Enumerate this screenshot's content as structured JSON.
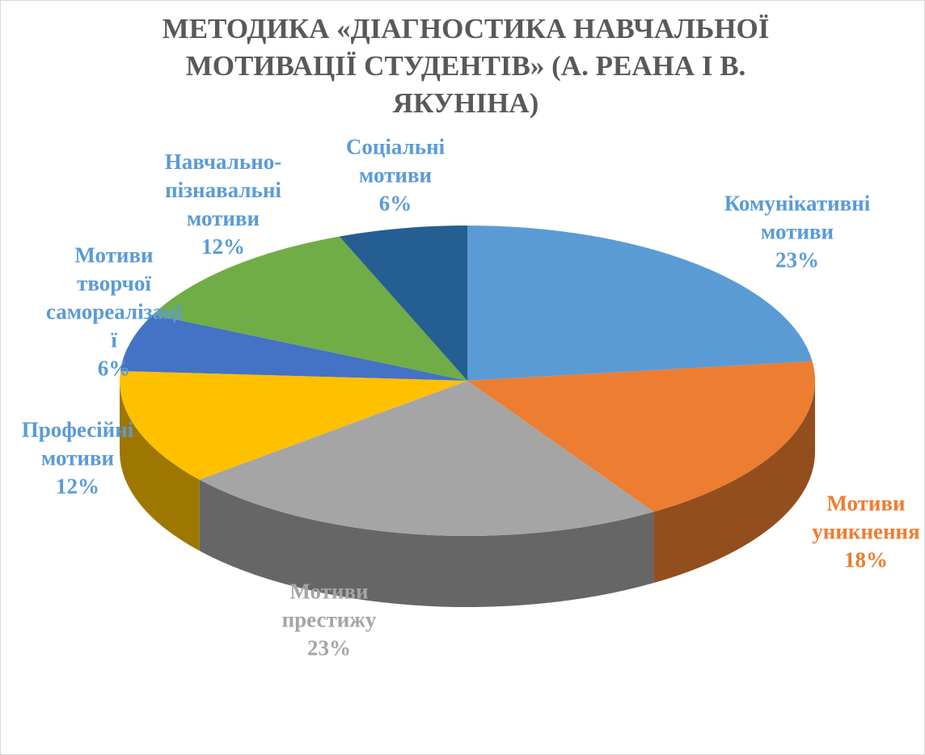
{
  "chart_data": {
    "type": "pie",
    "title": "МЕТОДИКА «ДІАГНОСТИКА НАВЧАЛЬНОЇ МОТИВАЦІЇ СТУДЕНТІВ» (А. РЕАНА І В. ЯКУНІНА)",
    "categories": [
      "Комунікативні мотиви",
      "Мотиви уникнення",
      "Мотиви престижу",
      "Професійні мотиви",
      "Мотиви творчої самореалізації",
      "Навчально-пізнавальні мотиви",
      "Соціальні мотиви"
    ],
    "values": [
      23,
      18,
      23,
      12,
      6,
      12,
      6
    ],
    "value_labels": [
      "23%",
      "18%",
      "23%",
      "12%",
      "6%",
      "12%",
      "6%"
    ],
    "colors": [
      "#5b9bd5",
      "#ed7d31",
      "#a5a5a5",
      "#ffc000",
      "#4472c4",
      "#70ad47",
      "#255e91"
    ],
    "label_colors": [
      "#5b9bd5",
      "#ed7d31",
      "#a5a5a5",
      "#5b9bd5",
      "#5b9bd5",
      "#5b9bd5",
      "#5b9bd5"
    ]
  }
}
